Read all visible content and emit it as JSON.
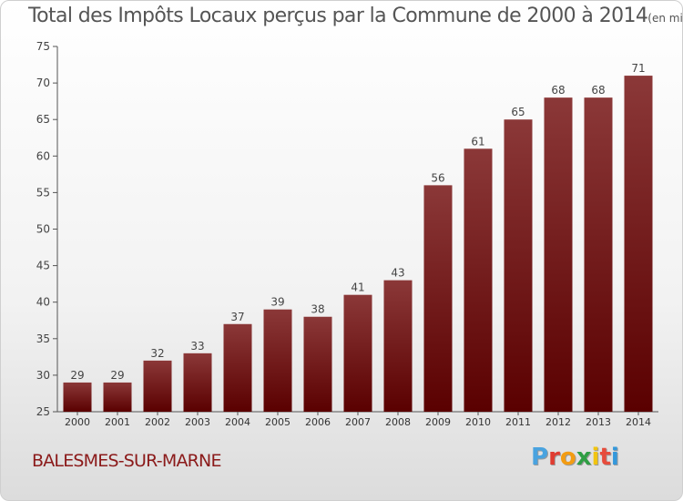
{
  "title": "Total des Impôts Locaux perçus par la Commune de 2000 à 2014",
  "title_unit": "(en milliers d'€)",
  "commune": "BALESMES-SUR-MARNE",
  "brand": "Proxiti",
  "colors": {
    "bar_top": "#8b3838",
    "bar_bottom": "#5a0000",
    "commune_text": "#8b1a1a",
    "logo": [
      "#4aa3df",
      "#e03c31",
      "#f39c12",
      "#2f9e44",
      "#f1c40f",
      "#e74c3c",
      "#3498db"
    ]
  },
  "chart_data": {
    "type": "bar",
    "title": "Total des Impôts Locaux perçus par la Commune de 2000 à 2014",
    "xlabel": "",
    "ylabel": "",
    "categories": [
      "2000",
      "2001",
      "2002",
      "2003",
      "2004",
      "2005",
      "2006",
      "2007",
      "2008",
      "2009",
      "2010",
      "2011",
      "2012",
      "2013",
      "2014"
    ],
    "values": [
      29,
      29,
      32,
      33,
      37,
      39,
      38,
      41,
      43,
      56,
      61,
      65,
      68,
      68,
      71
    ],
    "ylim": [
      25,
      75
    ],
    "yticks": [
      25,
      30,
      35,
      40,
      45,
      50,
      55,
      60,
      65,
      70,
      75
    ],
    "grid": false,
    "data_labels": true
  }
}
